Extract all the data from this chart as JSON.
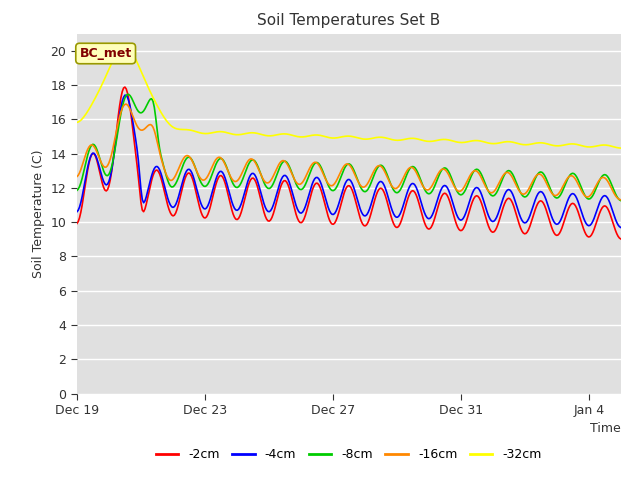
{
  "title": "Soil Temperatures Set B",
  "xlabel": "Time",
  "ylabel": "Soil Temperature (C)",
  "annotation_text": "BC_met",
  "ylim": [
    0,
    21
  ],
  "yticks": [
    0,
    2,
    4,
    6,
    8,
    10,
    12,
    14,
    16,
    18,
    20
  ],
  "bg_color": "#e0e0e0",
  "fig_bg_color": "#ffffff",
  "series_colors": {
    "-2cm": "#ff0000",
    "-4cm": "#0000ff",
    "-8cm": "#00cc00",
    "-16cm": "#ff8800",
    "-32cm": "#ffff00"
  },
  "legend_labels": [
    "-2cm",
    "-4cm",
    "-8cm",
    "-16cm",
    "-32cm"
  ],
  "x_tick_labels": [
    "Dec 19",
    "Dec 23",
    "Dec 27",
    "Dec 31",
    "Jan 4"
  ],
  "x_tick_positions": [
    0,
    4,
    8,
    12,
    16
  ]
}
